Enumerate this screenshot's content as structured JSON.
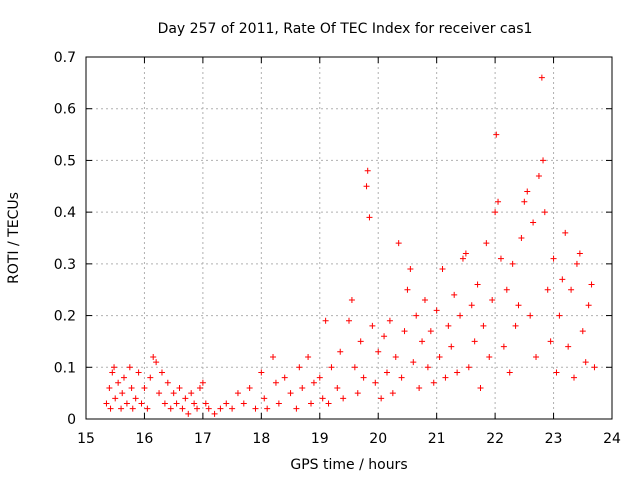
{
  "chart_data": {
    "type": "scatter",
    "title": "Day 257 of 2011, Rate Of TEC Index for receiver cas1",
    "xlabel": "GPS time / hours",
    "ylabel": "ROTI / TECUs",
    "xlim": [
      15,
      24
    ],
    "ylim": [
      0,
      0.7
    ],
    "xticks": [
      "15",
      "16",
      "17",
      "18",
      "19",
      "20",
      "21",
      "22",
      "23",
      "24"
    ],
    "yticks": [
      "0",
      "0.1",
      "0.2",
      "0.3",
      "0.4",
      "0.5",
      "0.6",
      "0.7"
    ],
    "grid": true,
    "marker": "+",
    "color": "#ff0000",
    "series": [
      {
        "name": "ROTI",
        "points": [
          [
            15.35,
            0.03
          ],
          [
            15.4,
            0.06
          ],
          [
            15.42,
            0.02
          ],
          [
            15.45,
            0.09
          ],
          [
            15.48,
            0.1
          ],
          [
            15.5,
            0.04
          ],
          [
            15.55,
            0.07
          ],
          [
            15.6,
            0.02
          ],
          [
            15.62,
            0.05
          ],
          [
            15.65,
            0.08
          ],
          [
            15.7,
            0.03
          ],
          [
            15.75,
            0.1
          ],
          [
            15.78,
            0.06
          ],
          [
            15.8,
            0.02
          ],
          [
            15.85,
            0.04
          ],
          [
            15.9,
            0.09
          ],
          [
            15.95,
            0.03
          ],
          [
            16.0,
            0.06
          ],
          [
            16.05,
            0.02
          ],
          [
            16.1,
            0.08
          ],
          [
            16.15,
            0.12
          ],
          [
            16.2,
            0.11
          ],
          [
            16.25,
            0.05
          ],
          [
            16.3,
            0.09
          ],
          [
            16.35,
            0.03
          ],
          [
            16.4,
            0.07
          ],
          [
            16.45,
            0.02
          ],
          [
            16.5,
            0.05
          ],
          [
            16.55,
            0.03
          ],
          [
            16.6,
            0.06
          ],
          [
            16.65,
            0.02
          ],
          [
            16.7,
            0.04
          ],
          [
            16.75,
            0.01
          ],
          [
            16.8,
            0.05
          ],
          [
            16.85,
            0.03
          ],
          [
            16.9,
            0.02
          ],
          [
            16.95,
            0.06
          ],
          [
            17.0,
            0.07
          ],
          [
            17.05,
            0.03
          ],
          [
            17.1,
            0.02
          ],
          [
            17.2,
            0.01
          ],
          [
            17.3,
            0.02
          ],
          [
            17.4,
            0.03
          ],
          [
            17.5,
            0.02
          ],
          [
            17.6,
            0.05
          ],
          [
            17.7,
            0.03
          ],
          [
            17.8,
            0.06
          ],
          [
            17.9,
            0.02
          ],
          [
            18.0,
            0.09
          ],
          [
            18.05,
            0.04
          ],
          [
            18.1,
            0.02
          ],
          [
            18.2,
            0.12
          ],
          [
            18.25,
            0.07
          ],
          [
            18.3,
            0.03
          ],
          [
            18.4,
            0.08
          ],
          [
            18.5,
            0.05
          ],
          [
            18.6,
            0.02
          ],
          [
            18.65,
            0.1
          ],
          [
            18.7,
            0.06
          ],
          [
            18.8,
            0.12
          ],
          [
            18.85,
            0.03
          ],
          [
            18.9,
            0.07
          ],
          [
            19.0,
            0.08
          ],
          [
            19.05,
            0.04
          ],
          [
            19.1,
            0.19
          ],
          [
            19.15,
            0.03
          ],
          [
            19.2,
            0.1
          ],
          [
            19.3,
            0.06
          ],
          [
            19.35,
            0.13
          ],
          [
            19.4,
            0.04
          ],
          [
            19.5,
            0.19
          ],
          [
            19.55,
            0.23
          ],
          [
            19.6,
            0.1
          ],
          [
            19.65,
            0.05
          ],
          [
            19.7,
            0.15
          ],
          [
            19.75,
            0.08
          ],
          [
            19.8,
            0.45
          ],
          [
            19.82,
            0.48
          ],
          [
            19.85,
            0.39
          ],
          [
            19.9,
            0.18
          ],
          [
            19.95,
            0.07
          ],
          [
            20.0,
            0.13
          ],
          [
            20.05,
            0.04
          ],
          [
            20.1,
            0.16
          ],
          [
            20.15,
            0.09
          ],
          [
            20.2,
            0.19
          ],
          [
            20.25,
            0.05
          ],
          [
            20.3,
            0.12
          ],
          [
            20.35,
            0.34
          ],
          [
            20.4,
            0.08
          ],
          [
            20.45,
            0.17
          ],
          [
            20.5,
            0.25
          ],
          [
            20.55,
            0.29
          ],
          [
            20.6,
            0.11
          ],
          [
            20.65,
            0.2
          ],
          [
            20.7,
            0.06
          ],
          [
            20.75,
            0.15
          ],
          [
            20.8,
            0.23
          ],
          [
            20.85,
            0.1
          ],
          [
            20.9,
            0.17
          ],
          [
            20.95,
            0.07
          ],
          [
            21.0,
            0.21
          ],
          [
            21.05,
            0.12
          ],
          [
            21.1,
            0.29
          ],
          [
            21.15,
            0.08
          ],
          [
            21.2,
            0.18
          ],
          [
            21.25,
            0.14
          ],
          [
            21.3,
            0.24
          ],
          [
            21.35,
            0.09
          ],
          [
            21.4,
            0.2
          ],
          [
            21.45,
            0.31
          ],
          [
            21.5,
            0.32
          ],
          [
            21.55,
            0.1
          ],
          [
            21.6,
            0.22
          ],
          [
            21.65,
            0.15
          ],
          [
            21.7,
            0.26
          ],
          [
            21.75,
            0.06
          ],
          [
            21.8,
            0.18
          ],
          [
            21.85,
            0.34
          ],
          [
            21.9,
            0.12
          ],
          [
            21.95,
            0.23
          ],
          [
            22.0,
            0.4
          ],
          [
            22.02,
            0.55
          ],
          [
            22.05,
            0.42
          ],
          [
            22.1,
            0.31
          ],
          [
            22.15,
            0.14
          ],
          [
            22.2,
            0.25
          ],
          [
            22.25,
            0.09
          ],
          [
            22.3,
            0.3
          ],
          [
            22.35,
            0.18
          ],
          [
            22.4,
            0.22
          ],
          [
            22.45,
            0.35
          ],
          [
            22.5,
            0.42
          ],
          [
            22.55,
            0.44
          ],
          [
            22.6,
            0.2
          ],
          [
            22.65,
            0.38
          ],
          [
            22.7,
            0.12
          ],
          [
            22.75,
            0.47
          ],
          [
            22.8,
            0.66
          ],
          [
            22.82,
            0.5
          ],
          [
            22.85,
            0.4
          ],
          [
            22.9,
            0.25
          ],
          [
            22.95,
            0.15
          ],
          [
            23.0,
            0.31
          ],
          [
            23.05,
            0.09
          ],
          [
            23.1,
            0.2
          ],
          [
            23.15,
            0.27
          ],
          [
            23.2,
            0.36
          ],
          [
            23.25,
            0.14
          ],
          [
            23.3,
            0.25
          ],
          [
            23.35,
            0.08
          ],
          [
            23.4,
            0.3
          ],
          [
            23.45,
            0.32
          ],
          [
            23.5,
            0.17
          ],
          [
            23.55,
            0.11
          ],
          [
            23.6,
            0.22
          ],
          [
            23.65,
            0.26
          ],
          [
            23.7,
            0.1
          ]
        ]
      }
    ]
  }
}
